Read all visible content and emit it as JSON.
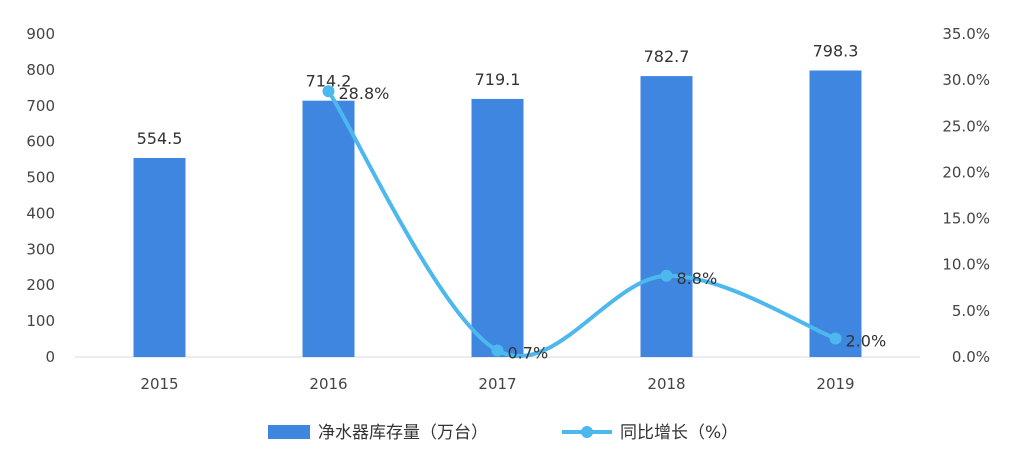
{
  "chart_data": {
    "type": "bar",
    "categories": [
      "2015",
      "2016",
      "2017",
      "2018",
      "2019"
    ],
    "series": [
      {
        "name": "净水器库存量（万台）",
        "type": "bar",
        "axis": "left",
        "color": "#3F86E0",
        "values": [
          554.5,
          714.2,
          719.1,
          782.7,
          798.3
        ],
        "labels": [
          "554.5",
          "714.2",
          "719.1",
          "782.7",
          "798.3"
        ]
      },
      {
        "name": "同比增长（%）",
        "type": "line",
        "axis": "right",
        "color": "#4DB8EE",
        "values": [
          null,
          28.8,
          0.7,
          8.8,
          2.0
        ],
        "labels": [
          "",
          "28.8%",
          "0.7%",
          "8.8%",
          "2.0%"
        ]
      }
    ],
    "y_left": {
      "min": 0,
      "max": 900,
      "ticks": [
        "0",
        "100",
        "200",
        "300",
        "400",
        "500",
        "600",
        "700",
        "800",
        "900"
      ]
    },
    "y_right": {
      "min": 0,
      "max": 35,
      "ticks": [
        "0.0%",
        "5.0%",
        "10.0%",
        "15.0%",
        "20.0%",
        "25.0%",
        "30.0%",
        "35.0%"
      ]
    },
    "grid": false,
    "legend_position": "bottom"
  }
}
